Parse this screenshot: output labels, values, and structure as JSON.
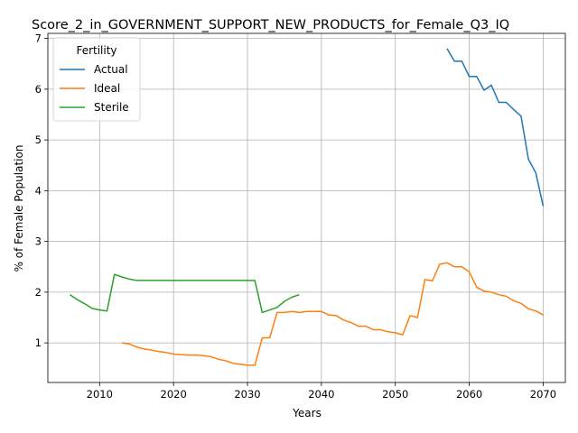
{
  "chart_data": {
    "type": "line",
    "title": "Score_2_in_GOVERNMENT_SUPPORT_NEW_PRODUCTS_for_Female_Q3_IQ",
    "xlabel": "Years",
    "ylabel": "% of Female Population",
    "xlim": [
      2003,
      2073
    ],
    "ylim": [
      0.22,
      7.1
    ],
    "x_ticks": [
      2010,
      2020,
      2030,
      2040,
      2050,
      2060,
      2070
    ],
    "y_ticks": [
      1,
      2,
      3,
      4,
      5,
      6,
      7
    ],
    "grid": true,
    "legend": {
      "title": "Fertility",
      "placement": "top-left"
    },
    "series": [
      {
        "name": "Actual",
        "color": "#1f77b4",
        "x": [
          2057,
          2058,
          2059,
          2060,
          2061,
          2062,
          2063,
          2064,
          2065,
          2066,
          2067,
          2068,
          2069,
          2070
        ],
        "values": [
          6.8,
          6.55,
          6.55,
          6.25,
          6.25,
          5.98,
          6.08,
          5.74,
          5.74,
          5.6,
          5.47,
          4.62,
          4.35,
          3.7
        ]
      },
      {
        "name": "Ideal",
        "color": "#ff7f0e",
        "x": [
          2013,
          2014,
          2015,
          2016,
          2017,
          2018,
          2019,
          2020,
          2021,
          2022,
          2023,
          2024,
          2025,
          2026,
          2027,
          2028,
          2029,
          2030,
          2031,
          2032,
          2033,
          2034,
          2035,
          2036,
          2037,
          2038,
          2039,
          2040,
          2041,
          2042,
          2043,
          2044,
          2045,
          2046,
          2047,
          2048,
          2049,
          2050,
          2051,
          2052,
          2053,
          2054,
          2055,
          2056,
          2057,
          2058,
          2059,
          2060,
          2061,
          2062,
          2063,
          2064,
          2065,
          2066,
          2067,
          2068,
          2069,
          2070
        ],
        "values": [
          1.0,
          0.98,
          0.92,
          0.88,
          0.86,
          0.83,
          0.81,
          0.78,
          0.77,
          0.76,
          0.76,
          0.75,
          0.73,
          0.68,
          0.65,
          0.6,
          0.58,
          0.56,
          0.56,
          1.1,
          1.1,
          1.6,
          1.6,
          1.62,
          1.6,
          1.62,
          1.62,
          1.62,
          1.55,
          1.54,
          1.45,
          1.4,
          1.33,
          1.33,
          1.26,
          1.26,
          1.22,
          1.2,
          1.16,
          1.54,
          1.5,
          2.25,
          2.22,
          2.55,
          2.58,
          2.5,
          2.5,
          2.4,
          2.1,
          2.02,
          2.0,
          1.95,
          1.92,
          1.83,
          1.78,
          1.67,
          1.63,
          1.55
        ]
      },
      {
        "name": "Sterile",
        "color": "#2ca02c",
        "x": [
          2006,
          2007,
          2008,
          2009,
          2010,
          2011,
          2012,
          2013,
          2014,
          2015,
          2016,
          2017,
          2018,
          2019,
          2020,
          2021,
          2022,
          2023,
          2024,
          2025,
          2026,
          2027,
          2028,
          2029,
          2030,
          2031,
          2032,
          2033,
          2034,
          2035,
          2036,
          2037
        ],
        "values": [
          1.95,
          1.85,
          1.77,
          1.68,
          1.65,
          1.63,
          2.35,
          2.3,
          2.26,
          2.23,
          2.23,
          2.23,
          2.23,
          2.23,
          2.23,
          2.23,
          2.23,
          2.23,
          2.23,
          2.23,
          2.23,
          2.23,
          2.23,
          2.23,
          2.23,
          2.23,
          1.6,
          1.65,
          1.7,
          1.82,
          1.9,
          1.95
        ]
      }
    ]
  }
}
